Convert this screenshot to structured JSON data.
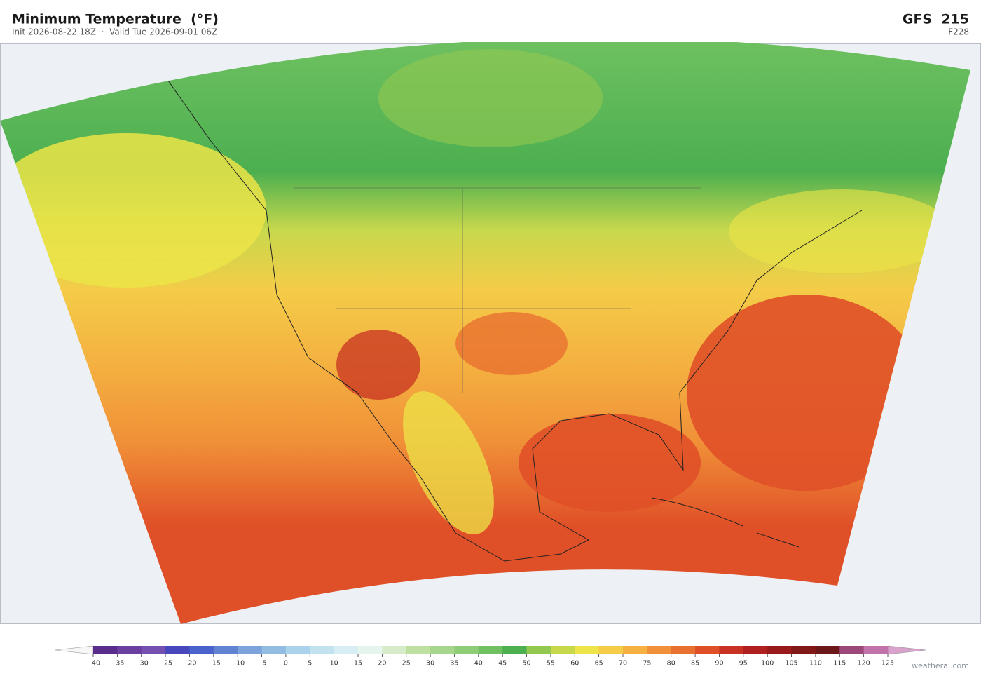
{
  "header": {
    "title": "Minimum Temperature  (°F)",
    "subtitle": "Init 2026-08-22 18Z  ·  Valid Tue 2026-09-01 06Z",
    "model": "GFS  215",
    "forecast_hour": "F228"
  },
  "colorbar": {
    "lim": [
      -40,
      125
    ],
    "ticks": [
      {
        "value": -40,
        "label": "−40"
      },
      {
        "value": -35,
        "label": "−35"
      },
      {
        "value": -30,
        "label": "−30"
      },
      {
        "value": -25,
        "label": "−25"
      },
      {
        "value": -20,
        "label": "−20"
      },
      {
        "value": -15,
        "label": "−15"
      },
      {
        "value": -10,
        "label": "−10"
      },
      {
        "value": -5,
        "label": "−5"
      },
      0,
      5,
      10,
      15,
      20,
      25,
      30,
      35,
      40,
      45,
      50,
      55,
      60,
      65,
      70,
      75,
      80,
      85,
      90,
      95,
      100,
      105,
      110,
      115,
      120,
      125
    ],
    "colors": [
      "#5a2d8c",
      "#6b3f9f",
      "#7450b0",
      "#4848bc",
      "#4a62cc",
      "#6282d2",
      "#7ea2dc",
      "#92bce2",
      "#aad2ea",
      "#c2e2f0",
      "#d6eef4",
      "#e6f4ee",
      "#d6ecc8",
      "#bee0a0",
      "#a6d68c",
      "#8ecc76",
      "#6ec060",
      "#4caf50",
      "#92c850",
      "#c8d84c",
      "#ece448",
      "#f4cc48",
      "#f4b040",
      "#f09038",
      "#e87030",
      "#e05028",
      "#c83222",
      "#b02020",
      "#981a1a",
      "#801818",
      "#6c1818",
      "#9c4878",
      "#c272aa"
    ],
    "under_color": "#f6f6f6",
    "over_color": "#d8a2cc"
  },
  "footer": {
    "credit": "weatherai.com"
  }
}
